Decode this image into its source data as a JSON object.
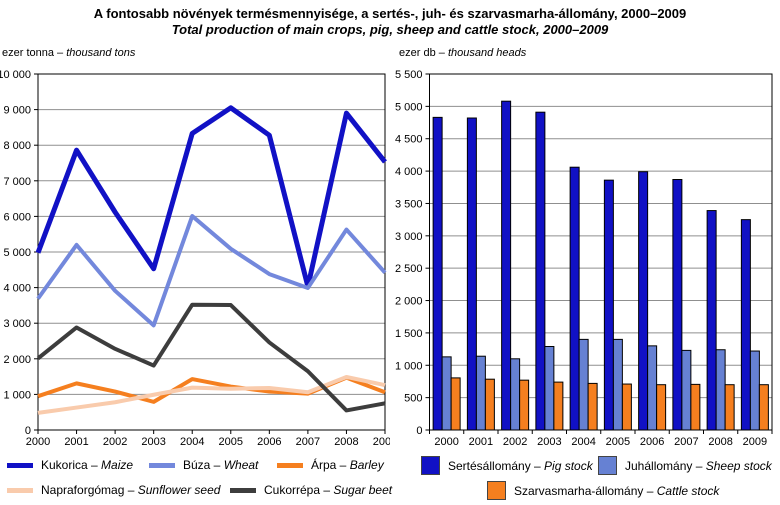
{
  "page": {
    "title_hu": "A fontosabb növények termésmennyisége, a sertés-, juh- és szarvasmarha-állomány, 2000–2009",
    "title_en": "Total production of main crops, pig, sheep and cattle stock, 2000–2009",
    "sep": " – "
  },
  "colors": {
    "maize_pig_blue": "#1111C5",
    "wheat_light_blue": "#7388DC",
    "sheep_light_blue": "#6681D3",
    "orange": "#F57F1F",
    "sunflower_peach": "#F9CBAC",
    "sugarbeet_gray": "#3D3D3D",
    "gridline": "#8F8F8F",
    "plot_border": "#000000"
  },
  "chart_data": [
    {
      "id": "crops",
      "type": "line",
      "unit_caption_hu": "ezer tonna",
      "unit_caption_en": "thousand tons",
      "categories": [
        "2000",
        "2001",
        "2002",
        "2003",
        "2004",
        "2005",
        "2006",
        "2007",
        "2008",
        "2009"
      ],
      "ylim": [
        0,
        10000
      ],
      "ytick_step": 1000,
      "grid": true,
      "legend_position": "bottom",
      "series": [
        {
          "name_hu": "Kukorica",
          "name_en": "Maize",
          "color": "#1111C5",
          "values": [
            4980,
            7860,
            6120,
            4530,
            8330,
            9050,
            8280,
            4030,
            8900,
            7530
          ]
        },
        {
          "name_hu": "Búza",
          "name_en": "Wheat",
          "color": "#7388DC",
          "values": [
            3690,
            5200,
            3910,
            2940,
            6010,
            5090,
            4380,
            3990,
            5630,
            4420
          ]
        },
        {
          "name_hu": "Árpa",
          "name_en": "Barley",
          "color": "#F57F1F",
          "values": [
            950,
            1310,
            1080,
            790,
            1430,
            1220,
            1080,
            1020,
            1470,
            1060
          ]
        },
        {
          "name_hu": "Napraforgómag",
          "name_en": "Sunflower seed",
          "color": "#F9CBAC",
          "values": [
            480,
            630,
            780,
            990,
            1190,
            1160,
            1180,
            1060,
            1490,
            1260
          ]
        },
        {
          "name_hu": "Cukorrépa",
          "name_en": "Sugar beet",
          "color": "#3D3D3D",
          "values": [
            2010,
            2880,
            2280,
            1810,
            3520,
            3510,
            2460,
            1650,
            550,
            750
          ]
        }
      ]
    },
    {
      "id": "stock",
      "type": "bar",
      "unit_caption_hu": "ezer db",
      "unit_caption_en": "thousand heads",
      "categories": [
        "2000",
        "2001",
        "2002",
        "2003",
        "2004",
        "2005",
        "2006",
        "2007",
        "2008",
        "2009"
      ],
      "ylim": [
        0,
        5500
      ],
      "ytick_step": 500,
      "grid": true,
      "legend_position": "bottom",
      "series": [
        {
          "name_hu": "Sertésállomány",
          "name_en": "Pig stock",
          "color": "#1111C5",
          "values": [
            4830,
            4820,
            5080,
            4910,
            4060,
            3860,
            3990,
            3870,
            3390,
            3250
          ]
        },
        {
          "name_hu": "Juhállomány",
          "name_en": "Sheep stock",
          "color": "#6681D3",
          "values": [
            1130,
            1140,
            1100,
            1290,
            1400,
            1400,
            1300,
            1230,
            1240,
            1220
          ]
        },
        {
          "name_hu": "Szarvasmarha-állomány",
          "name_en": "Cattle stock",
          "color": "#F57F1F",
          "values": [
            805,
            785,
            770,
            740,
            720,
            710,
            700,
            705,
            700,
            700
          ]
        }
      ]
    }
  ]
}
